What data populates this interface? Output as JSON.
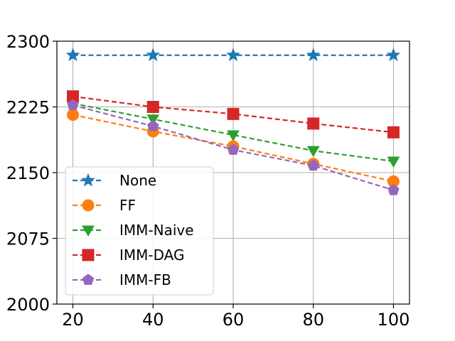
{
  "chart_data": {
    "type": "line",
    "title": "",
    "xlabel": "",
    "ylabel": "",
    "x": [
      20,
      40,
      60,
      80,
      100
    ],
    "xticks": [
      "20",
      "40",
      "60",
      "80",
      "100"
    ],
    "xlim": [
      16,
      104
    ],
    "yticks": [
      "2000",
      "2075",
      "2150",
      "2225",
      "2300"
    ],
    "ytick_values": [
      2000,
      2075,
      2150,
      2225,
      2300
    ],
    "ylim": [
      2000,
      2300
    ],
    "grid": true,
    "legend_position": "lower-left",
    "series": [
      {
        "name": "None",
        "color": "#1f77b4",
        "marker": "star",
        "values": [
          2284,
          2284,
          2284,
          2284,
          2284
        ]
      },
      {
        "name": "FF",
        "color": "#ff7f0e",
        "marker": "circle",
        "values": [
          2216,
          2197,
          2180,
          2160,
          2140
        ]
      },
      {
        "name": "IMM-Naive",
        "color": "#2ca02c",
        "marker": "triangle-down",
        "values": [
          2229,
          2211,
          2193,
          2175,
          2163
        ]
      },
      {
        "name": "IMM-DAG",
        "color": "#d62728",
        "marker": "square",
        "values": [
          2237,
          2225,
          2217,
          2206,
          2196
        ]
      },
      {
        "name": "IMM-FB",
        "color": "#9467bd",
        "marker": "pentagon",
        "values": [
          2227,
          2203,
          2176,
          2158,
          2130
        ]
      }
    ]
  }
}
